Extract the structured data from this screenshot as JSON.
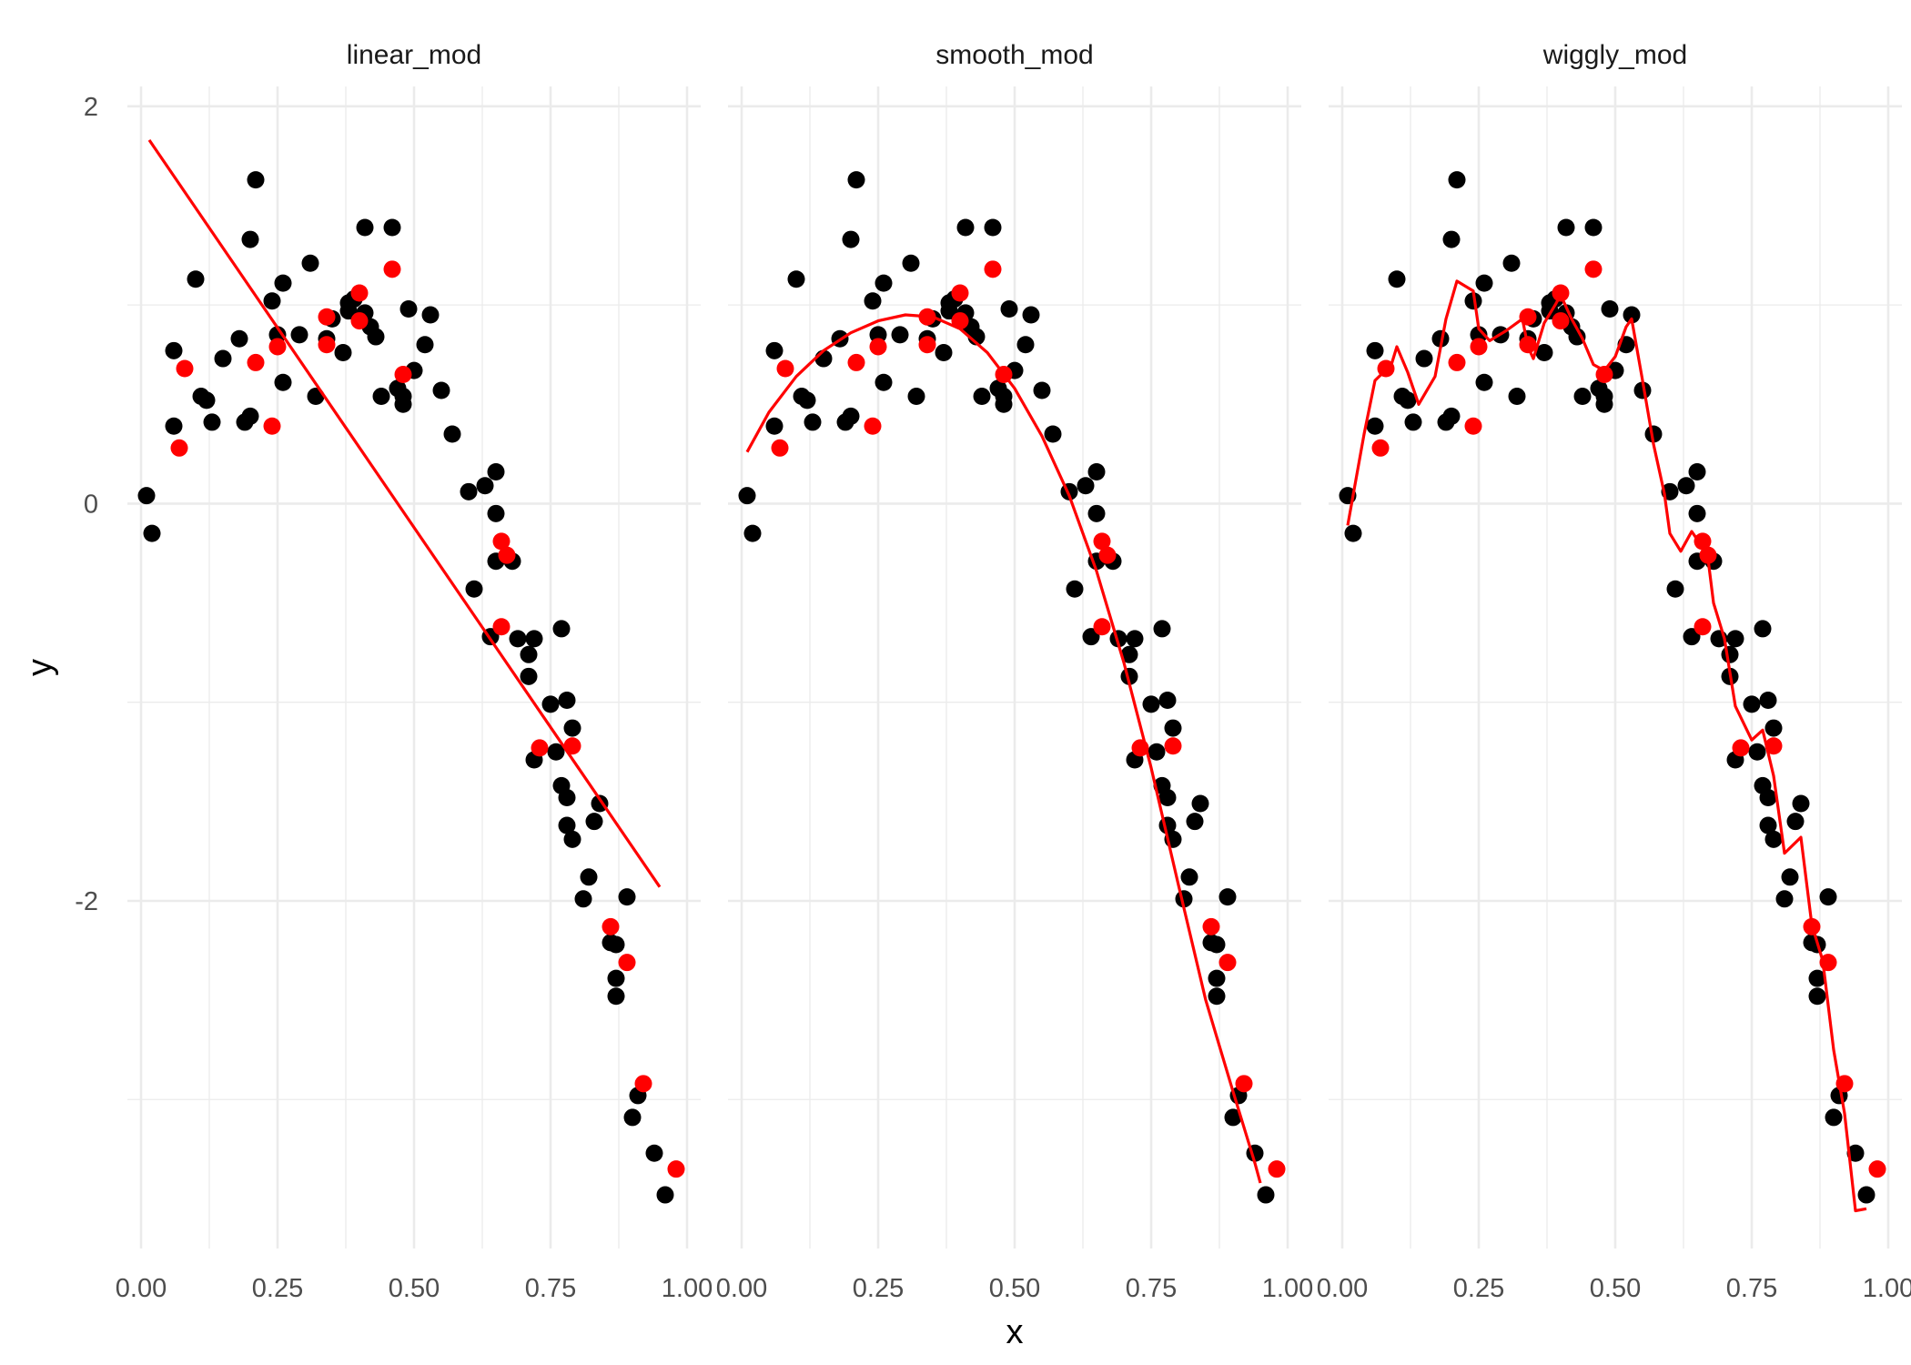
{
  "colors": {
    "observed": "#000000",
    "holdout": "#ff0000",
    "fit_line": "#ff0000",
    "grid": "#ebebeb",
    "tick_text": "#4d4d4d"
  },
  "chart_data": {
    "type": "scatter",
    "layout": "faceted",
    "xlabel": "x",
    "ylabel": "y",
    "xlim": [
      0,
      1
    ],
    "ylim": [
      -3.75,
      2.1
    ],
    "x_ticks": [
      0,
      0.25,
      0.5,
      0.75,
      1.0
    ],
    "x_tick_labels": [
      "0.00",
      "0.25",
      "0.50",
      "0.75",
      "1.00"
    ],
    "y_ticks": [
      -2,
      0,
      2
    ],
    "y_tick_labels": [
      "-2",
      "0",
      "2"
    ],
    "grid": true,
    "legend": "none",
    "points": {
      "black": [
        [
          0.01,
          0.04
        ],
        [
          0.02,
          -0.15
        ],
        [
          0.06,
          0.39
        ],
        [
          0.06,
          0.77
        ],
        [
          0.1,
          1.13
        ],
        [
          0.11,
          0.54
        ],
        [
          0.12,
          0.52
        ],
        [
          0.13,
          0.41
        ],
        [
          0.15,
          0.73
        ],
        [
          0.18,
          0.83
        ],
        [
          0.19,
          0.41
        ],
        [
          0.2,
          0.44
        ],
        [
          0.2,
          1.33
        ],
        [
          0.21,
          1.63
        ],
        [
          0.24,
          1.02
        ],
        [
          0.25,
          0.85
        ],
        [
          0.26,
          0.61
        ],
        [
          0.26,
          1.11
        ],
        [
          0.29,
          0.85
        ],
        [
          0.31,
          1.21
        ],
        [
          0.32,
          0.54
        ],
        [
          0.34,
          0.83
        ],
        [
          0.35,
          0.93
        ],
        [
          0.37,
          0.76
        ],
        [
          0.38,
          0.97
        ],
        [
          0.38,
          1.01
        ],
        [
          0.39,
          1.03
        ],
        [
          0.4,
          0.93
        ],
        [
          0.41,
          1.39
        ],
        [
          0.41,
          0.96
        ],
        [
          0.42,
          0.89
        ],
        [
          0.43,
          0.84
        ],
        [
          0.44,
          0.54
        ],
        [
          0.46,
          1.39
        ],
        [
          0.47,
          0.58
        ],
        [
          0.48,
          0.5
        ],
        [
          0.48,
          0.54
        ],
        [
          0.49,
          0.98
        ],
        [
          0.5,
          0.67
        ],
        [
          0.52,
          0.8
        ],
        [
          0.53,
          0.95
        ],
        [
          0.55,
          0.57
        ],
        [
          0.57,
          0.35
        ],
        [
          0.6,
          0.06
        ],
        [
          0.61,
          -0.43
        ],
        [
          0.63,
          0.09
        ],
        [
          0.64,
          -0.67
        ],
        [
          0.65,
          0.16
        ],
        [
          0.65,
          -0.05
        ],
        [
          0.65,
          -0.29
        ],
        [
          0.68,
          -0.29
        ],
        [
          0.69,
          -0.68
        ],
        [
          0.71,
          -0.76
        ],
        [
          0.71,
          -0.87
        ],
        [
          0.72,
          -0.68
        ],
        [
          0.72,
          -1.29
        ],
        [
          0.75,
          -1.01
        ],
        [
          0.76,
          -1.25
        ],
        [
          0.77,
          -1.42
        ],
        [
          0.77,
          -0.63
        ],
        [
          0.78,
          -1.48
        ],
        [
          0.78,
          -1.62
        ],
        [
          0.78,
          -0.99
        ],
        [
          0.79,
          -1.13
        ],
        [
          0.79,
          -1.69
        ],
        [
          0.81,
          -1.99
        ],
        [
          0.82,
          -1.88
        ],
        [
          0.83,
          -1.6
        ],
        [
          0.84,
          -1.51
        ],
        [
          0.86,
          -2.21
        ],
        [
          0.87,
          -2.22
        ],
        [
          0.87,
          -2.39
        ],
        [
          0.87,
          -2.48
        ],
        [
          0.89,
          -1.98
        ],
        [
          0.9,
          -3.09
        ],
        [
          0.91,
          -2.98
        ],
        [
          0.94,
          -3.27
        ],
        [
          0.96,
          -3.48
        ]
      ],
      "red": [
        [
          0.07,
          0.28
        ],
        [
          0.08,
          0.68
        ],
        [
          0.21,
          0.71
        ],
        [
          0.24,
          0.39
        ],
        [
          0.25,
          0.79
        ],
        [
          0.34,
          0.94
        ],
        [
          0.34,
          0.8
        ],
        [
          0.4,
          0.92
        ],
        [
          0.4,
          1.06
        ],
        [
          0.46,
          1.18
        ],
        [
          0.48,
          0.65
        ],
        [
          0.66,
          -0.19
        ],
        [
          0.66,
          -0.62
        ],
        [
          0.67,
          -0.26
        ],
        [
          0.73,
          -1.23
        ],
        [
          0.79,
          -1.22
        ],
        [
          0.86,
          -2.13
        ],
        [
          0.89,
          -2.31
        ],
        [
          0.92,
          -2.92
        ],
        [
          0.98,
          -3.35
        ]
      ]
    },
    "panels": [
      {
        "title": "linear_mod",
        "fit": [
          [
            0.015,
            1.83
          ],
          [
            0.95,
            -1.93
          ]
        ]
      },
      {
        "title": "smooth_mod",
        "fit": [
          [
            0.01,
            0.26
          ],
          [
            0.05,
            0.46
          ],
          [
            0.1,
            0.64
          ],
          [
            0.15,
            0.77
          ],
          [
            0.2,
            0.86
          ],
          [
            0.25,
            0.92
          ],
          [
            0.3,
            0.95
          ],
          [
            0.35,
            0.94
          ],
          [
            0.4,
            0.88
          ],
          [
            0.45,
            0.76
          ],
          [
            0.5,
            0.58
          ],
          [
            0.55,
            0.34
          ],
          [
            0.6,
            0.04
          ],
          [
            0.65,
            -0.34
          ],
          [
            0.7,
            -0.8
          ],
          [
            0.75,
            -1.33
          ],
          [
            0.8,
            -1.92
          ],
          [
            0.85,
            -2.5
          ],
          [
            0.9,
            -2.96
          ],
          [
            0.94,
            -3.32
          ],
          [
            0.95,
            -3.42
          ]
        ]
      },
      {
        "title": "wiggly_mod",
        "fit": [
          [
            0.01,
            -0.11
          ],
          [
            0.04,
            0.35
          ],
          [
            0.06,
            0.62
          ],
          [
            0.09,
            0.7
          ],
          [
            0.1,
            0.79
          ],
          [
            0.12,
            0.66
          ],
          [
            0.14,
            0.5
          ],
          [
            0.17,
            0.64
          ],
          [
            0.19,
            0.93
          ],
          [
            0.21,
            1.12
          ],
          [
            0.24,
            1.07
          ],
          [
            0.25,
            0.88
          ],
          [
            0.27,
            0.82
          ],
          [
            0.3,
            0.87
          ],
          [
            0.33,
            0.93
          ],
          [
            0.34,
            0.79
          ],
          [
            0.35,
            0.73
          ],
          [
            0.37,
            0.91
          ],
          [
            0.39,
            1.0
          ],
          [
            0.4,
            1.05
          ],
          [
            0.42,
            0.93
          ],
          [
            0.44,
            0.83
          ],
          [
            0.46,
            0.7
          ],
          [
            0.48,
            0.67
          ],
          [
            0.5,
            0.74
          ],
          [
            0.52,
            0.89
          ],
          [
            0.53,
            0.93
          ],
          [
            0.55,
            0.62
          ],
          [
            0.57,
            0.3
          ],
          [
            0.59,
            0.05
          ],
          [
            0.6,
            -0.15
          ],
          [
            0.62,
            -0.24
          ],
          [
            0.64,
            -0.14
          ],
          [
            0.65,
            -0.18
          ],
          [
            0.67,
            -0.28
          ],
          [
            0.68,
            -0.5
          ],
          [
            0.7,
            -0.68
          ],
          [
            0.72,
            -1.02
          ],
          [
            0.75,
            -1.19
          ],
          [
            0.77,
            -1.14
          ],
          [
            0.79,
            -1.37
          ],
          [
            0.81,
            -1.76
          ],
          [
            0.84,
            -1.68
          ],
          [
            0.86,
            -2.12
          ],
          [
            0.88,
            -2.3
          ],
          [
            0.9,
            -2.75
          ],
          [
            0.92,
            -3.07
          ],
          [
            0.94,
            -3.56
          ],
          [
            0.96,
            -3.55
          ]
        ]
      }
    ]
  }
}
